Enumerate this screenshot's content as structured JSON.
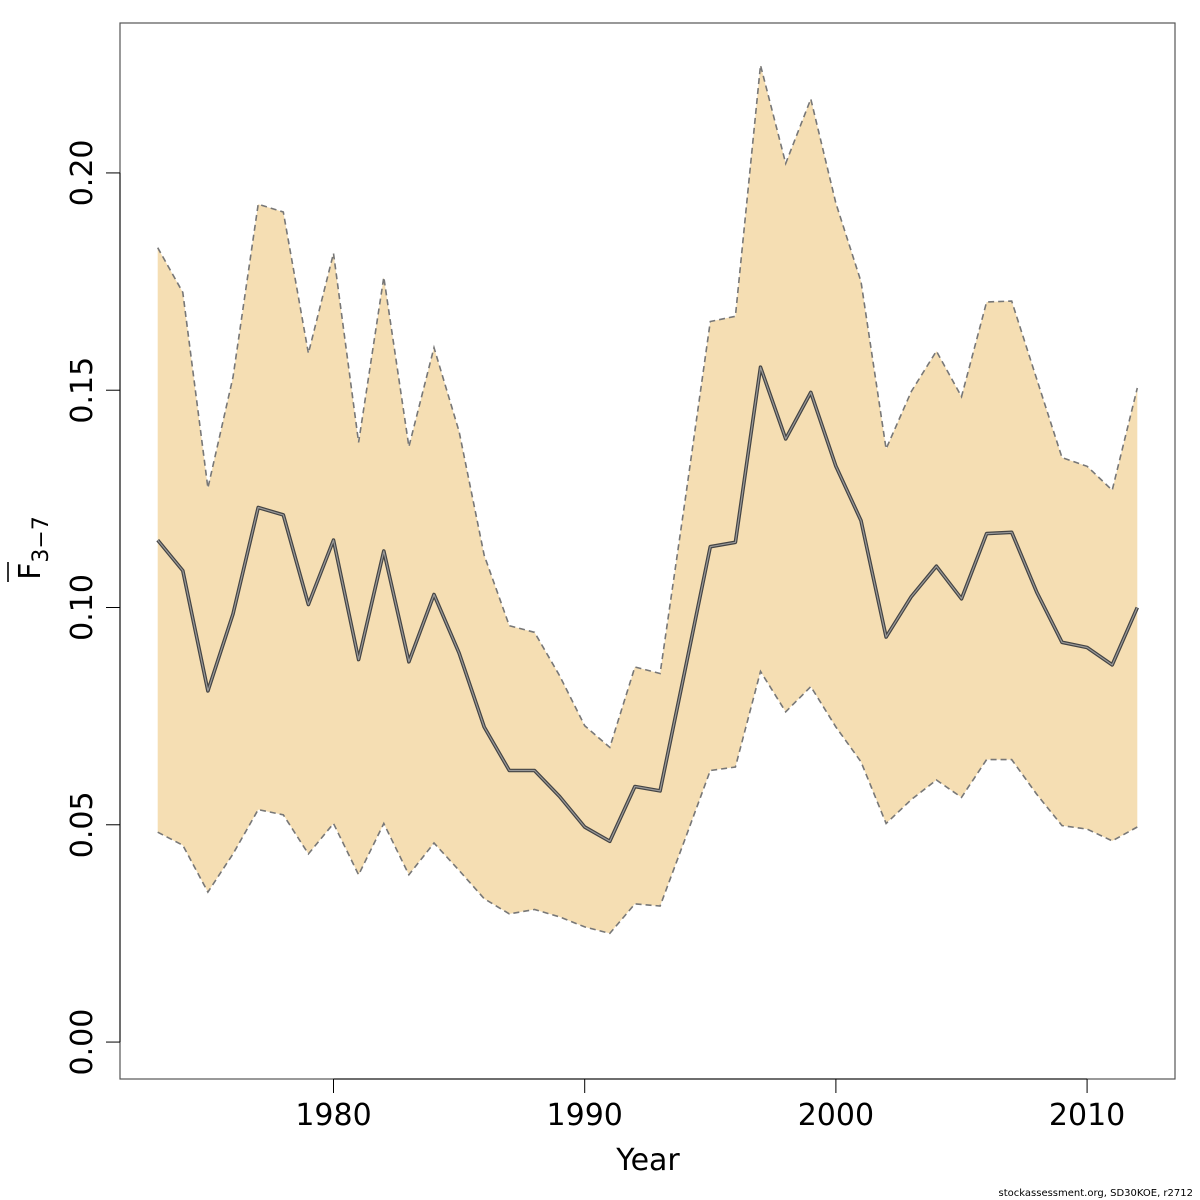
{
  "chart_data": {
    "type": "area",
    "xlabel": "Year",
    "ylabel_main": "F",
    "ylabel_sub": "3−7",
    "xlim": [
      1971.5,
      2013.5
    ],
    "ylim": [
      -0.0085,
      0.2345
    ],
    "x_ticks": [
      1980,
      1990,
      2000,
      2010
    ],
    "x_tick_labels": [
      "1980",
      "1990",
      "2000",
      "2010"
    ],
    "y_ticks": [
      0.0,
      0.05,
      0.1,
      0.15,
      0.2
    ],
    "y_tick_labels": [
      "0.00",
      "0.05",
      "0.10",
      "0.15",
      "0.20"
    ],
    "grid": false,
    "x": [
      1973,
      1974,
      1975,
      1976,
      1977,
      1978,
      1979,
      1980,
      1981,
      1982,
      1983,
      1984,
      1985,
      1986,
      1987,
      1988,
      1989,
      1990,
      1991,
      1992,
      1993,
      1994,
      1995,
      1996,
      1997,
      1998,
      1999,
      2000,
      2001,
      2002,
      2003,
      2004,
      2005,
      2006,
      2007,
      2008,
      2009,
      2010,
      2011,
      2012
    ],
    "series": [
      {
        "role": "estimate",
        "values": [
          0.1155,
          0.1085,
          0.0808,
          0.0985,
          0.123,
          0.1213,
          0.1007,
          0.1155,
          0.088,
          0.113,
          0.0875,
          0.103,
          0.0895,
          0.0725,
          0.0625,
          0.0625,
          0.0565,
          0.0495,
          0.0462,
          0.0588,
          0.0578,
          0.0858,
          0.114,
          0.115,
          0.1553,
          0.1388,
          0.1495,
          0.1325,
          0.12,
          0.0932,
          0.1025,
          0.1095,
          0.102,
          0.117,
          0.1173,
          0.1035,
          0.092,
          0.0908,
          0.0868,
          0.1
        ]
      },
      {
        "role": "upper",
        "values": [
          0.1828,
          0.1725,
          0.1275,
          0.153,
          0.1928,
          0.191,
          0.1585,
          0.1815,
          0.138,
          0.176,
          0.137,
          0.1598,
          0.1405,
          0.112,
          0.0958,
          0.0943,
          0.0843,
          0.0728,
          0.0678,
          0.0863,
          0.0848,
          0.1248,
          0.1658,
          0.167,
          0.2248,
          0.2022,
          0.217,
          0.193,
          0.175,
          0.1365,
          0.1497,
          0.159,
          0.1485,
          0.1703,
          0.1705,
          0.1525,
          0.1345,
          0.1325,
          0.127,
          0.1505
        ]
      },
      {
        "role": "lower",
        "values": [
          0.0483,
          0.0453,
          0.0345,
          0.0433,
          0.0535,
          0.0523,
          0.0433,
          0.0503,
          0.0385,
          0.0503,
          0.0385,
          0.0458,
          0.0395,
          0.033,
          0.0295,
          0.0305,
          0.0288,
          0.0265,
          0.025,
          0.0318,
          0.0313,
          0.0468,
          0.0625,
          0.0633,
          0.0853,
          0.076,
          0.0818,
          0.0725,
          0.0645,
          0.0503,
          0.0558,
          0.0603,
          0.0563,
          0.065,
          0.065,
          0.057,
          0.0498,
          0.049,
          0.0463,
          0.0495
        ]
      }
    ],
    "colors": {
      "band_fill": "#f5deb3",
      "band_edge": "#777777",
      "estimate_outer": "#444444",
      "estimate_inner": "#999999",
      "frame": "#555555"
    }
  },
  "footer": {
    "credit": "stockassessment.org, SD30KOE, r2712"
  }
}
